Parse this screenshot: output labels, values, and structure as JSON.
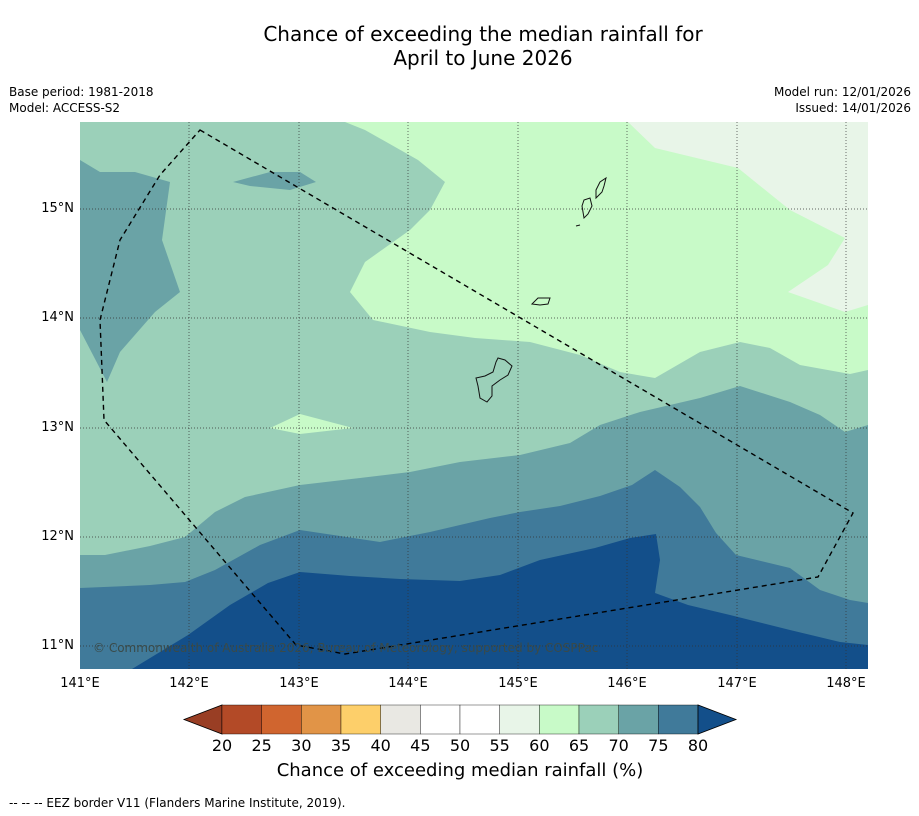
{
  "title": {
    "line1": "Chance of exceeding the median rainfall for",
    "line2": "April to June 2026"
  },
  "meta": {
    "base_period": "Base period: 1981-2018",
    "model": "Model: ACCESS-S2",
    "model_run": "Model run: 12/01/2026",
    "issued": "Issued: 14/01/2026"
  },
  "map": {
    "lon_labels": [
      "141°E",
      "142°E",
      "143°E",
      "144°E",
      "145°E",
      "146°E",
      "147°E",
      "148°E"
    ],
    "lat_labels": [
      "15°N",
      "14°N",
      "13°N",
      "12°N",
      "11°N"
    ],
    "copyright": "© Commonwealth of Australia 2026, Bureau of Meteorology, supported by COSPPac",
    "zone_colors": {
      "c55_60": "#e8f5e8",
      "c60_65": "#c8fac8",
      "c65_70": "#9bd0b9",
      "c70_75": "#6aa3a6",
      "c75_80": "#407a9a",
      "c80p": "#134f8a"
    }
  },
  "colorbar": {
    "labels": [
      "20",
      "25",
      "30",
      "35",
      "40",
      "45",
      "50",
      "55",
      "60",
      "65",
      "70",
      "75",
      "80"
    ],
    "colors": [
      "#b34a27",
      "#d0652f",
      "#e19447",
      "#fdcf6a",
      "#e9e8e3",
      "#ffffff",
      "#ffffff",
      "#e8f5e8",
      "#c8fac8",
      "#9bd0b9",
      "#6aa3a6",
      "#407a9a"
    ],
    "under_color": "#993e24",
    "over_color": "#134f8a",
    "title": "Chance of exceeding median rainfall (%)"
  },
  "footnote": "-- -- -- EEZ border V11 (Flanders Marine Institute, 2019)."
}
